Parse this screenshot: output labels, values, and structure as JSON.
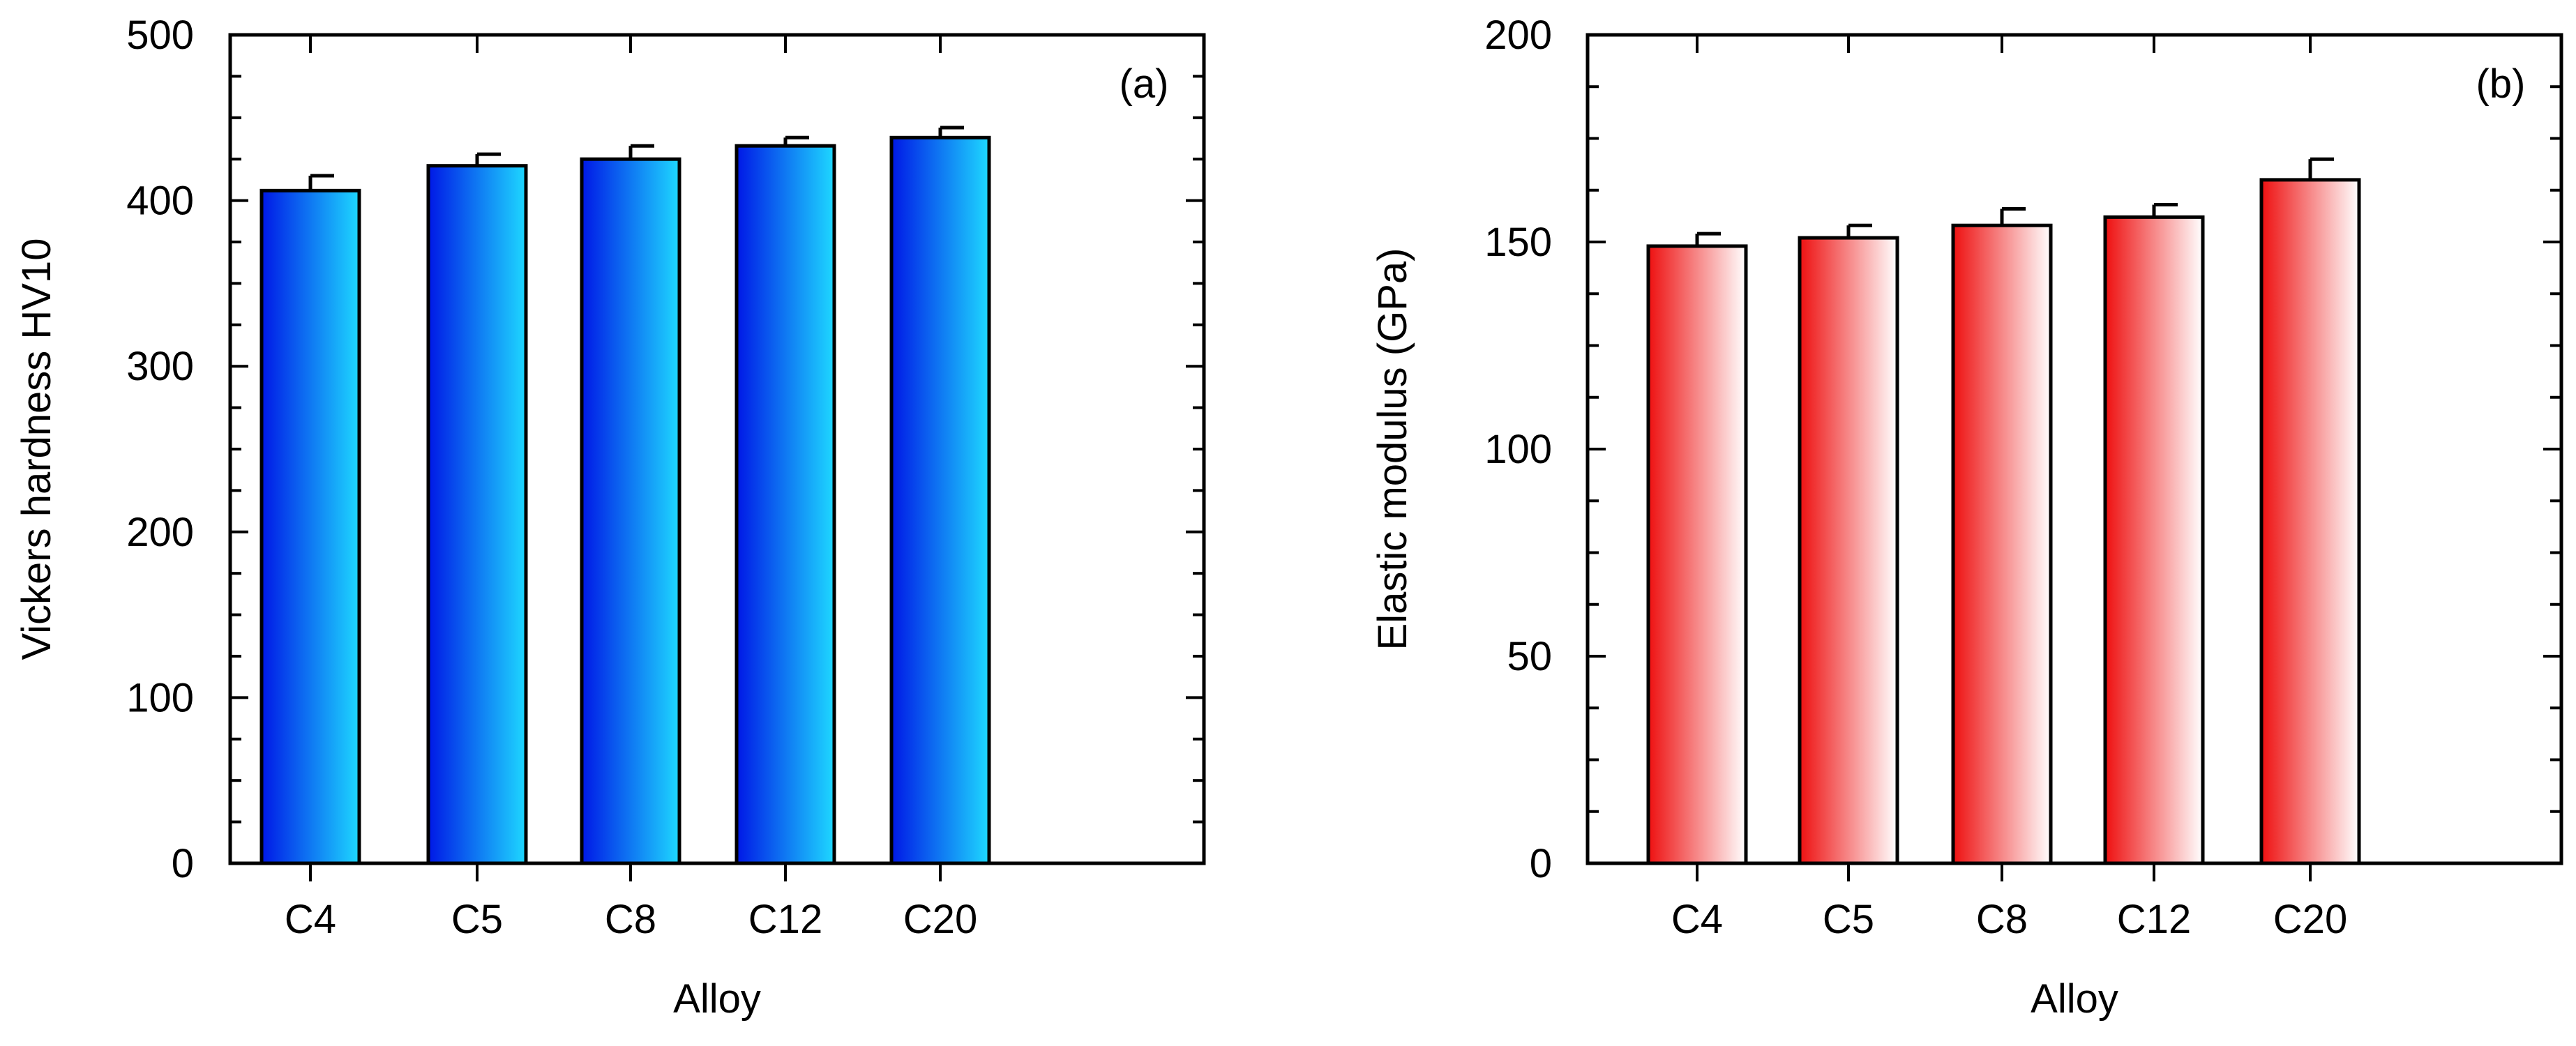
{
  "colors": {
    "blue_dark": "#0018e6",
    "blue_light": "#1ed8ff",
    "red_dark": "#ee1010",
    "red_light": "#ffffff"
  },
  "chart_data": [
    {
      "type": "bar",
      "panel_label": "(a)",
      "categories": [
        "C4",
        "C5",
        "C8",
        "C12",
        "C20"
      ],
      "values": [
        406,
        421,
        425,
        433,
        438
      ],
      "errors": [
        9,
        7,
        8,
        5,
        6
      ],
      "xlabel": "Alloy",
      "ylabel": "Vickers hardness HV10",
      "ylim": [
        0,
        500
      ],
      "yticks": [
        0,
        100,
        200,
        300,
        400,
        500
      ],
      "grid": false,
      "gradient": [
        "#0018e6",
        "#1ed8ff"
      ]
    },
    {
      "type": "bar",
      "panel_label": "(b)",
      "categories": [
        "C4",
        "C5",
        "C8",
        "C12",
        "C20"
      ],
      "values": [
        149,
        151,
        154,
        156,
        165
      ],
      "errors": [
        3,
        3,
        4,
        3,
        5
      ],
      "xlabel": "Alloy",
      "ylabel": "Elastic modulus (GPa)",
      "ylim": [
        0,
        200
      ],
      "yticks": [
        0,
        50,
        100,
        150,
        200
      ],
      "grid": false,
      "gradient": [
        "#ee1010",
        "#ffffff"
      ]
    }
  ]
}
